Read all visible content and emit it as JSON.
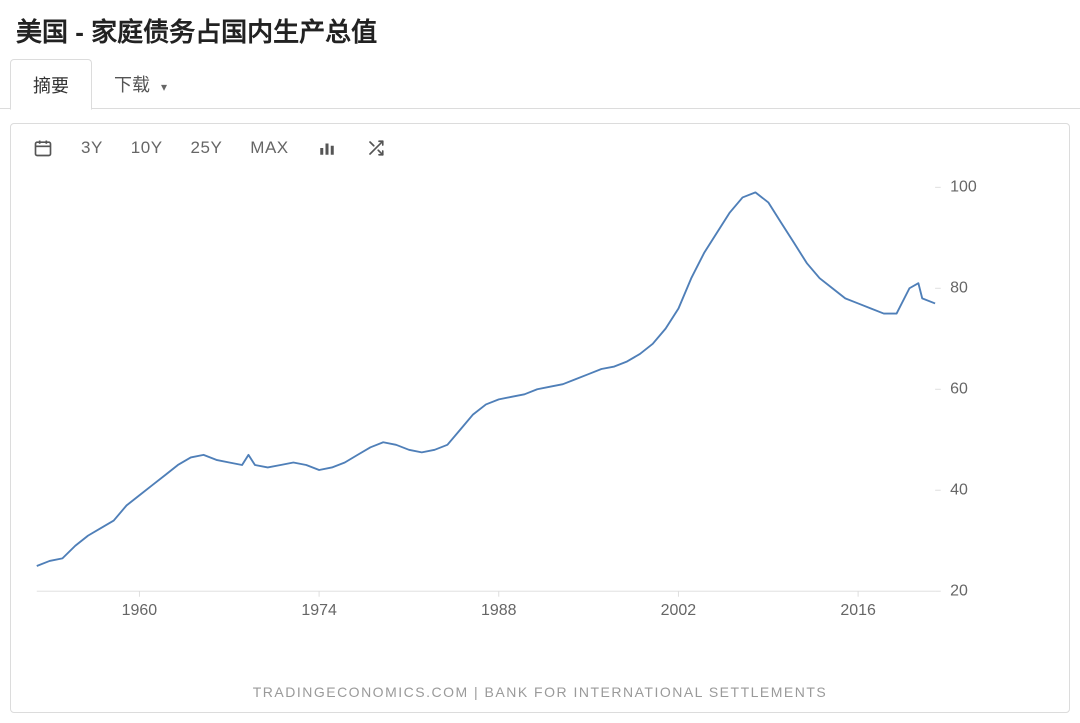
{
  "title": "美国 - 家庭债务占国内生产总值",
  "tabs": {
    "summary": "摘要",
    "download": "下载"
  },
  "toolbar": {
    "range_3y": "3Y",
    "range_10y": "10Y",
    "range_25y": "25Y",
    "range_max": "MAX"
  },
  "attribution": "TRADINGECONOMICS.COM  |  BANK FOR INTERNATIONAL SETTLEMENTS",
  "chart": {
    "type": "line",
    "line_color": "#4f7fb8",
    "line_width": 2,
    "background_color": "#ffffff",
    "axis_color": "#dcdcdc",
    "tick_label_color": "#666666",
    "tick_fontsize": 17,
    "x": {
      "min": 1952,
      "max": 2022,
      "ticks": [
        1960,
        1974,
        1988,
        2002,
        2016
      ]
    },
    "y": {
      "min": 20,
      "max": 102,
      "ticks": [
        20,
        40,
        60,
        80,
        100
      ]
    },
    "series": [
      {
        "x": 1952,
        "y": 25
      },
      {
        "x": 1953,
        "y": 26
      },
      {
        "x": 1954,
        "y": 26.5
      },
      {
        "x": 1955,
        "y": 29
      },
      {
        "x": 1956,
        "y": 31
      },
      {
        "x": 1957,
        "y": 32.5
      },
      {
        "x": 1958,
        "y": 34
      },
      {
        "x": 1959,
        "y": 37
      },
      {
        "x": 1960,
        "y": 39
      },
      {
        "x": 1961,
        "y": 41
      },
      {
        "x": 1962,
        "y": 43
      },
      {
        "x": 1963,
        "y": 45
      },
      {
        "x": 1964,
        "y": 46.5
      },
      {
        "x": 1965,
        "y": 47
      },
      {
        "x": 1966,
        "y": 46
      },
      {
        "x": 1967,
        "y": 45.5
      },
      {
        "x": 1968,
        "y": 45
      },
      {
        "x": 1968.5,
        "y": 47
      },
      {
        "x": 1969,
        "y": 45
      },
      {
        "x": 1970,
        "y": 44.5
      },
      {
        "x": 1971,
        "y": 45
      },
      {
        "x": 1972,
        "y": 45.5
      },
      {
        "x": 1973,
        "y": 45
      },
      {
        "x": 1974,
        "y": 44
      },
      {
        "x": 1975,
        "y": 44.5
      },
      {
        "x": 1976,
        "y": 45.5
      },
      {
        "x": 1977,
        "y": 47
      },
      {
        "x": 1978,
        "y": 48.5
      },
      {
        "x": 1979,
        "y": 49.5
      },
      {
        "x": 1980,
        "y": 49
      },
      {
        "x": 1981,
        "y": 48
      },
      {
        "x": 1982,
        "y": 47.5
      },
      {
        "x": 1983,
        "y": 48
      },
      {
        "x": 1984,
        "y": 49
      },
      {
        "x": 1985,
        "y": 52
      },
      {
        "x": 1986,
        "y": 55
      },
      {
        "x": 1987,
        "y": 57
      },
      {
        "x": 1988,
        "y": 58
      },
      {
        "x": 1989,
        "y": 58.5
      },
      {
        "x": 1990,
        "y": 59
      },
      {
        "x": 1991,
        "y": 60
      },
      {
        "x": 1992,
        "y": 60.5
      },
      {
        "x": 1993,
        "y": 61
      },
      {
        "x": 1994,
        "y": 62
      },
      {
        "x": 1995,
        "y": 63
      },
      {
        "x": 1996,
        "y": 64
      },
      {
        "x": 1997,
        "y": 64.5
      },
      {
        "x": 1998,
        "y": 65.5
      },
      {
        "x": 1999,
        "y": 67
      },
      {
        "x": 2000,
        "y": 69
      },
      {
        "x": 2001,
        "y": 72
      },
      {
        "x": 2002,
        "y": 76
      },
      {
        "x": 2003,
        "y": 82
      },
      {
        "x": 2004,
        "y": 87
      },
      {
        "x": 2005,
        "y": 91
      },
      {
        "x": 2006,
        "y": 95
      },
      {
        "x": 2007,
        "y": 98
      },
      {
        "x": 2008,
        "y": 99
      },
      {
        "x": 2009,
        "y": 97
      },
      {
        "x": 2010,
        "y": 93
      },
      {
        "x": 2011,
        "y": 89
      },
      {
        "x": 2012,
        "y": 85
      },
      {
        "x": 2013,
        "y": 82
      },
      {
        "x": 2014,
        "y": 80
      },
      {
        "x": 2015,
        "y": 78
      },
      {
        "x": 2016,
        "y": 77
      },
      {
        "x": 2017,
        "y": 76
      },
      {
        "x": 2018,
        "y": 75
      },
      {
        "x": 2019,
        "y": 75
      },
      {
        "x": 2020,
        "y": 80
      },
      {
        "x": 2020.7,
        "y": 81
      },
      {
        "x": 2021,
        "y": 78
      },
      {
        "x": 2022,
        "y": 77
      }
    ]
  }
}
